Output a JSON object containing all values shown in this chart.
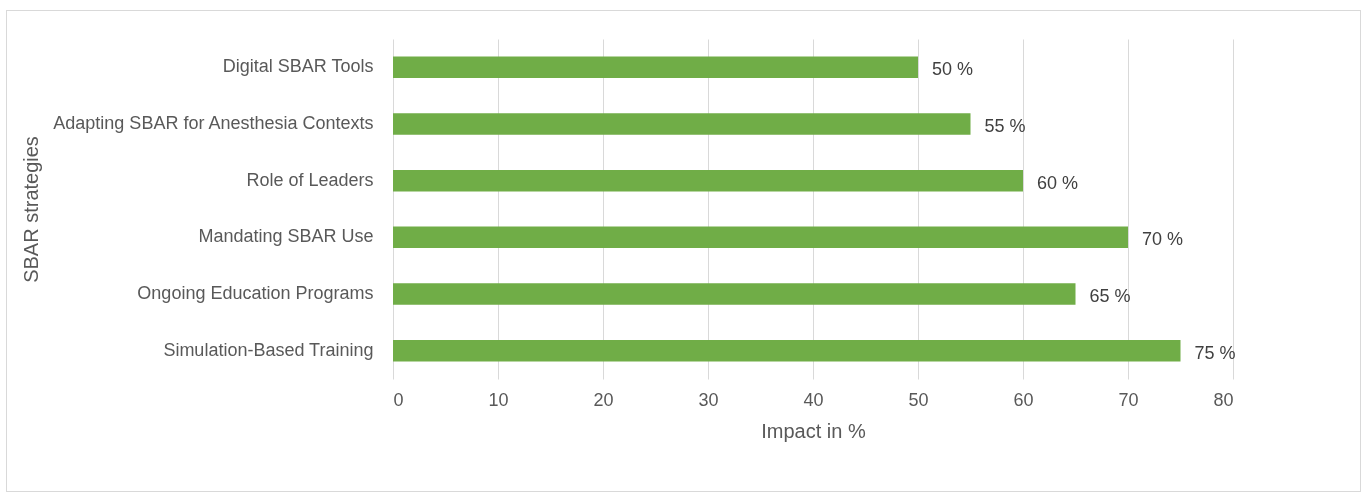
{
  "chart_data": {
    "type": "bar",
    "orientation": "horizontal",
    "xlabel": "Impact in %",
    "ylabel": "SBAR strategies",
    "categories": [
      "Digital SBAR Tools",
      "Adapting SBAR for Anesthesia Contexts",
      "Role of Leaders",
      "Mandating SBAR Use",
      "Ongoing Education Programs",
      "Simulation-Based Training"
    ],
    "values": [
      50,
      55,
      60,
      70,
      65,
      75
    ],
    "value_labels": [
      "50 %",
      "55 %",
      "60 %",
      "70 %",
      "65 %",
      "75 %"
    ],
    "color": "#70ad47",
    "xlim": [
      0,
      80
    ],
    "xticks": [
      0,
      10,
      20,
      30,
      40,
      50,
      60,
      70,
      80
    ],
    "grid": "x"
  }
}
